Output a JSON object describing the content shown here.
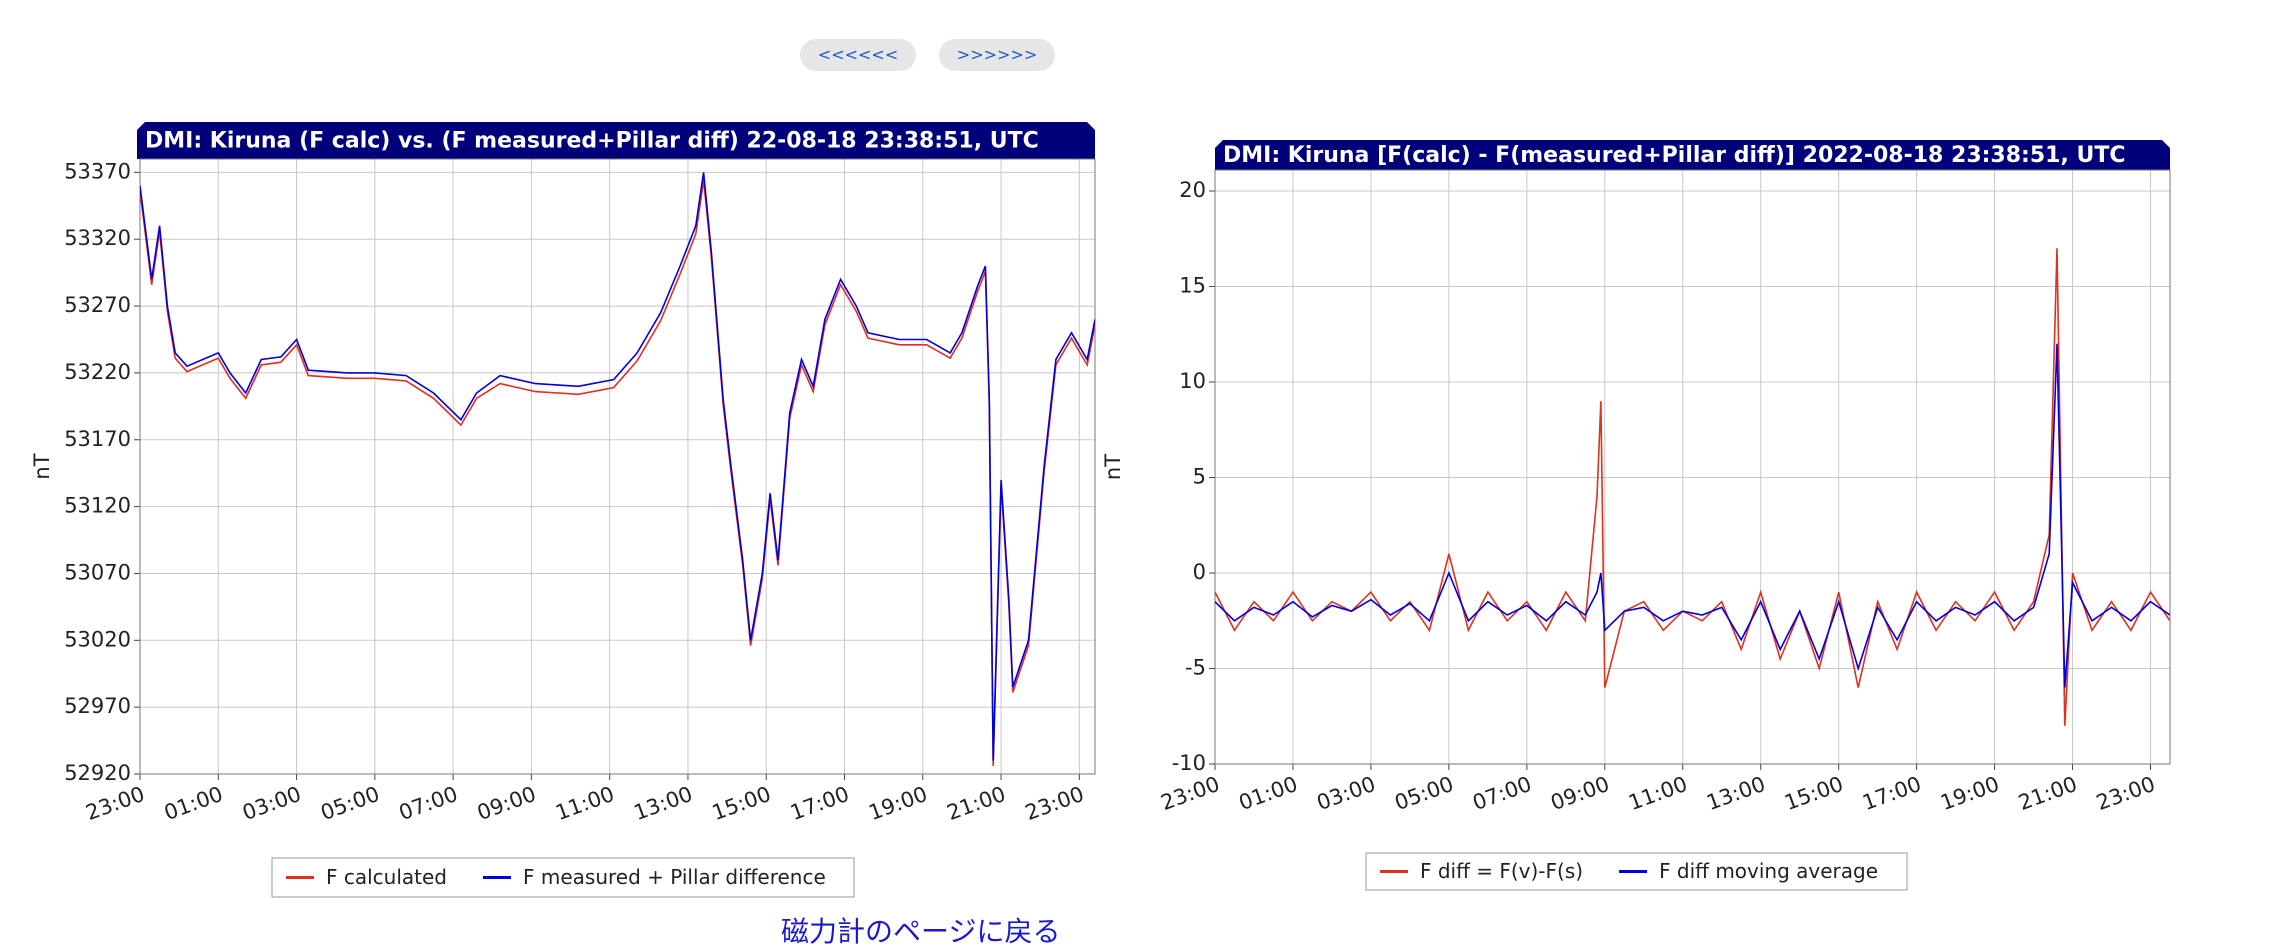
{
  "nav": {
    "prev": "<<<<<<",
    "next": ">>>>>>"
  },
  "link": "磁力計のページに戻る",
  "chart_data": [
    {
      "type": "line",
      "title": "DMI: Kiruna (F calc) vs. (F measured+Pillar diff) 22-08-18 23:38:51, UTC",
      "ylabel": "nT",
      "x": [
        0,
        0.3,
        0.5,
        0.7,
        0.9,
        1.2,
        2,
        2.3,
        2.7,
        3.1,
        3.6,
        4,
        4.3,
        5.3,
        6,
        6.8,
        7.5,
        8.2,
        8.6,
        9.2,
        10.1,
        11.2,
        12.1,
        12.7,
        13.3,
        13.8,
        14.2,
        14.4,
        14.6,
        14.9,
        15.1,
        15.4,
        15.6,
        15.9,
        16.1,
        16.3,
        16.6,
        16.9,
        17.2,
        17.5,
        17.9,
        18.3,
        18.6,
        19.4,
        20.1,
        20.7,
        21,
        21.4,
        21.6,
        21.7,
        21.8,
        22,
        22.2,
        22.3,
        22.7,
        23.1,
        23.4,
        23.8,
        24.2,
        24.4
      ],
      "xlim": [
        0,
        24.4
      ],
      "xticks": [
        {
          "value": 0,
          "label": "23:00"
        },
        {
          "value": 2,
          "label": "01:00"
        },
        {
          "value": 4,
          "label": "03:00"
        },
        {
          "value": 6,
          "label": "05:00"
        },
        {
          "value": 8,
          "label": "07:00"
        },
        {
          "value": 10,
          "label": "09:00"
        },
        {
          "value": 12,
          "label": "11:00"
        },
        {
          "value": 14,
          "label": "13:00"
        },
        {
          "value": 16,
          "label": "15:00"
        },
        {
          "value": 18,
          "label": "17:00"
        },
        {
          "value": 20,
          "label": "19:00"
        },
        {
          "value": 22,
          "label": "21:00"
        },
        {
          "value": 24,
          "label": "23:00"
        }
      ],
      "ylim": [
        52920,
        53380
      ],
      "yticks": [
        52920,
        52970,
        53020,
        53070,
        53120,
        53170,
        53220,
        53270,
        53320,
        53370
      ],
      "grid": true,
      "series": [
        {
          "name": "F calculated",
          "color": "#e0301e",
          "values": [
            53356,
            53286,
            53326,
            53266,
            53231,
            53221,
            53231,
            53216,
            53201,
            53226,
            53228,
            53241,
            53218,
            53216,
            53216,
            53214,
            53201,
            53181,
            53201,
            53212,
            53206,
            53204,
            53209,
            53229,
            53259,
            53294,
            53324,
            53364,
            53306,
            53196,
            53146,
            53076,
            53016,
            53066,
            53126,
            53076,
            53186,
            53226,
            53206,
            53256,
            53286,
            53266,
            53246,
            53241,
            53241,
            53231,
            53246,
            53281,
            53296,
            53196,
            52926,
            53136,
            53046,
            52981,
            53016,
            53146,
            53226,
            53246,
            53226,
            53256
          ]
        },
        {
          "name": "F measured + Pillar difference",
          "color": "#0000dd",
          "values": [
            53360,
            53290,
            53330,
            53270,
            53235,
            53225,
            53235,
            53220,
            53205,
            53230,
            53232,
            53245,
            53222,
            53220,
            53220,
            53218,
            53205,
            53185,
            53205,
            53218,
            53212,
            53210,
            53215,
            53235,
            53265,
            53300,
            53330,
            53370,
            53310,
            53200,
            53150,
            53080,
            53020,
            53070,
            53130,
            53080,
            53190,
            53230,
            53210,
            53260,
            53290,
            53270,
            53250,
            53245,
            53245,
            53235,
            53250,
            53285,
            53300,
            53200,
            52930,
            53140,
            53050,
            52985,
            53020,
            53150,
            53230,
            53250,
            53230,
            53260
          ]
        }
      ]
    },
    {
      "type": "line",
      "title": "DMI: Kiruna [F(calc) - F(measured+Pillar diff)] 2022-08-18 23:38:51, UTC",
      "ylabel": "nT",
      "x": [
        0,
        0.5,
        1,
        1.5,
        2,
        2.5,
        3,
        3.5,
        4,
        4.5,
        5,
        5.5,
        6,
        6.5,
        7,
        7.5,
        8,
        8.5,
        9,
        9.5,
        9.8,
        9.9,
        10,
        10.5,
        11,
        11.5,
        12,
        12.5,
        13,
        13.5,
        14,
        14.5,
        15,
        15.5,
        16,
        16.5,
        17,
        17.5,
        18,
        18.5,
        19,
        19.5,
        20,
        20.5,
        21,
        21.4,
        21.6,
        21.8,
        22,
        22.5,
        23,
        23.5,
        24,
        24.5
      ],
      "xlim": [
        0,
        24.5
      ],
      "xticks": [
        {
          "value": 0,
          "label": "23:00"
        },
        {
          "value": 2,
          "label": "01:00"
        },
        {
          "value": 4,
          "label": "03:00"
        },
        {
          "value": 6,
          "label": "05:00"
        },
        {
          "value": 8,
          "label": "07:00"
        },
        {
          "value": 10,
          "label": "09:00"
        },
        {
          "value": 12,
          "label": "11:00"
        },
        {
          "value": 14,
          "label": "13:00"
        },
        {
          "value": 16,
          "label": "15:00"
        },
        {
          "value": 18,
          "label": "17:00"
        },
        {
          "value": 20,
          "label": "19:00"
        },
        {
          "value": 22,
          "label": "21:00"
        },
        {
          "value": 24,
          "label": "23:00"
        }
      ],
      "ylim": [
        -10,
        21.1
      ],
      "yticks": [
        -10,
        -5,
        0,
        5,
        10,
        15,
        20
      ],
      "grid": true,
      "series": [
        {
          "name": "F diff = F(v)-F(s)",
          "color": "#e0301e",
          "values": [
            -1,
            -3,
            -1.5,
            -2.5,
            -1,
            -2.5,
            -1.5,
            -2,
            -1,
            -2.5,
            -1.5,
            -3,
            1,
            -3,
            -1,
            -2.5,
            -1.5,
            -3,
            -1,
            -2.5,
            4,
            9,
            -6,
            -2,
            -1.5,
            -3,
            -2,
            -2.5,
            -1.5,
            -4,
            -1,
            -4.5,
            -2,
            -5,
            -1,
            -6,
            -1.5,
            -4,
            -1,
            -3,
            -1.5,
            -2.5,
            -1,
            -3,
            -1.5,
            2,
            17,
            -8,
            0,
            -3,
            -1.5,
            -3,
            -1,
            -2.5
          ]
        },
        {
          "name": "F diff moving average",
          "color": "#0000dd",
          "values": [
            -1.5,
            -2.5,
            -1.8,
            -2.2,
            -1.5,
            -2.3,
            -1.7,
            -2,
            -1.4,
            -2.2,
            -1.6,
            -2.5,
            0,
            -2.5,
            -1.5,
            -2.2,
            -1.7,
            -2.5,
            -1.5,
            -2.2,
            -1,
            0,
            -3,
            -2,
            -1.8,
            -2.5,
            -2,
            -2.2,
            -1.8,
            -3.5,
            -1.5,
            -4,
            -2,
            -4.5,
            -1.5,
            -5,
            -1.8,
            -3.5,
            -1.5,
            -2.5,
            -1.8,
            -2.2,
            -1.5,
            -2.5,
            -1.8,
            1,
            12,
            -6,
            -0.5,
            -2.5,
            -1.8,
            -2.5,
            -1.5,
            -2.2
          ]
        }
      ]
    }
  ]
}
